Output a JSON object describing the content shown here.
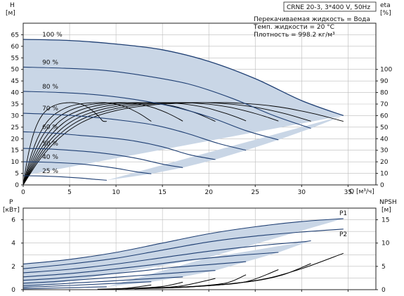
{
  "chart_data": [
    {
      "type": "line",
      "title": "CRNE 20-3, 3*400 V, 50Hz",
      "info_lines": [
        "Перекачиваемая жидкость = Вода",
        "Темп. жидкости = 20 °C",
        "Плотность = 998.2 кг/м³"
      ],
      "xlabel": "Q [м³/ч]",
      "ylabel_line1": "H",
      "ylabel_line2": "[м]",
      "y2label_line1": "eta",
      "y2label_line2": "[%]",
      "xlim": [
        0,
        38
      ],
      "ylim": [
        0,
        70
      ],
      "y2lim": [
        0,
        140
      ],
      "x_ticks": [
        0,
        5,
        10,
        15,
        20,
        25,
        30,
        35
      ],
      "y_ticks": [
        0,
        5,
        10,
        15,
        20,
        25,
        30,
        35,
        40,
        45,
        50,
        55,
        60,
        65
      ],
      "y2_ticks": [
        0,
        10,
        20,
        30,
        40,
        50,
        60,
        70,
        80,
        90,
        100
      ],
      "grid": true,
      "head_curves": [
        {
          "name": "100 %",
          "x": [
            0,
            5,
            10,
            15,
            20,
            25,
            30,
            34.5
          ],
          "y": [
            63,
            62.5,
            61,
            58.5,
            53.5,
            46,
            36.5,
            30
          ]
        },
        {
          "name": "90 %",
          "x": [
            0,
            4.5,
            9,
            13.5,
            18,
            22.5,
            27,
            31
          ],
          "y": [
            51,
            50.5,
            49.5,
            47,
            43.5,
            37.5,
            30,
            24.5
          ]
        },
        {
          "name": "80 %",
          "x": [
            0,
            4,
            8,
            12,
            16,
            20,
            24,
            27.5
          ],
          "y": [
            40.5,
            40,
            39,
            37,
            34,
            29.5,
            23.5,
            19.5
          ]
        },
        {
          "name": "70 %",
          "x": [
            0,
            3.5,
            7,
            10.5,
            14,
            17.5,
            21,
            24
          ],
          "y": [
            31,
            30.5,
            29.5,
            28,
            26,
            22.5,
            18,
            15
          ]
        },
        {
          "name": "60 %",
          "x": [
            0,
            3,
            6,
            9,
            12,
            15,
            18,
            20.7
          ],
          "y": [
            23,
            22.5,
            21.5,
            20.5,
            19,
            16.5,
            13,
            11
          ]
        },
        {
          "name": "50 %",
          "x": [
            0,
            2.5,
            5,
            7.5,
            10,
            12.5,
            15,
            17.2
          ],
          "y": [
            15.8,
            15.6,
            15,
            14.2,
            13,
            11.3,
            9,
            7.5
          ]
        },
        {
          "name": "40 %",
          "x": [
            0,
            2,
            4,
            6,
            8,
            10,
            12,
            13.8
          ],
          "y": [
            10,
            9.9,
            9.6,
            9.1,
            8.3,
            7.2,
            5.8,
            4.8
          ]
        },
        {
          "name": "25 %",
          "x": [
            0,
            1.5,
            3,
            4.5,
            6,
            7.5,
            9
          ],
          "y": [
            4,
            3.9,
            3.7,
            3.4,
            3,
            2.5,
            2
          ]
        }
      ],
      "efficiency_curves": [
        {
          "x": [
            0,
            2,
            4,
            6,
            8,
            10,
            12,
            14,
            16,
            18,
            20,
            22,
            24,
            26,
            28,
            30,
            32,
            34.5
          ],
          "y": [
            0,
            25,
            42,
            53,
            60,
            64.5,
            67.5,
            69.3,
            70.4,
            71,
            71.3,
            71.2,
            70.5,
            69.2,
            67,
            64,
            60.5,
            55
          ]
        }
      ]
    },
    {
      "type": "line",
      "ylabel_line1": "P",
      "ylabel_line2": "[кВт]",
      "y2label_line1": "NPSH",
      "y2label_line2": "[м]",
      "xlim": [
        0,
        38
      ],
      "ylim": [
        0,
        7
      ],
      "y2lim": [
        0,
        17.5
      ],
      "y_ticks": [
        0,
        2,
        4,
        6
      ],
      "y2_ticks": [
        0,
        5,
        10,
        15
      ],
      "grid": true,
      "power_curves": [
        {
          "name": "P1",
          "x": [
            0,
            5,
            10,
            15,
            20,
            25,
            30,
            34.5
          ],
          "y": [
            2.2,
            2.6,
            3.2,
            4,
            4.8,
            5.4,
            5.85,
            6.1
          ]
        },
        {
          "name": "P2",
          "x": [
            0,
            5,
            10,
            15,
            20,
            25,
            30,
            34.5
          ],
          "y": [
            1.8,
            2.2,
            2.7,
            3.4,
            4.1,
            4.6,
            4.95,
            5.2
          ]
        },
        {
          "x": [
            0,
            5,
            10,
            15,
            20,
            25,
            30,
            31
          ],
          "y": [
            1.45,
            1.75,
            2.2,
            2.75,
            3.3,
            3.75,
            4.1,
            4.2
          ]
        },
        {
          "x": [
            0,
            4.5,
            9,
            13.5,
            18,
            22.5,
            27.5
          ],
          "y": [
            1.1,
            1.35,
            1.7,
            2.1,
            2.55,
            2.9,
            3.2
          ]
        },
        {
          "x": [
            0,
            4,
            8,
            12,
            16,
            20,
            24
          ],
          "y": [
            0.8,
            1,
            1.25,
            1.55,
            1.9,
            2.15,
            2.4
          ]
        },
        {
          "x": [
            0,
            3.5,
            7,
            10.5,
            14,
            17.5,
            20.7
          ],
          "y": [
            0.55,
            0.7,
            0.9,
            1.1,
            1.3,
            1.5,
            1.65
          ]
        },
        {
          "x": [
            0,
            3,
            6,
            9,
            12,
            15,
            17.2
          ],
          "y": [
            0.35,
            0.45,
            0.6,
            0.72,
            0.87,
            1,
            1.1
          ]
        },
        {
          "x": [
            0,
            2.5,
            5,
            7.5,
            10,
            12.5,
            13.8
          ],
          "y": [
            0.2,
            0.28,
            0.36,
            0.45,
            0.55,
            0.63,
            0.68
          ]
        },
        {
          "x": [
            0,
            2,
            4,
            6,
            8,
            9
          ],
          "y": [
            0.08,
            0.11,
            0.15,
            0.19,
            0.23,
            0.25
          ]
        }
      ],
      "npsh_curves": [
        {
          "x": [
            14,
            18,
            22,
            26,
            30,
            34.5
          ],
          "y": [
            0.3,
            0.6,
            1.2,
            2.3,
            4.5,
            7.8
          ]
        },
        {
          "x": [
            13,
            17,
            21,
            25,
            28,
            31
          ],
          "y": [
            0.25,
            0.5,
            1,
            1.9,
            3.2,
            5.6
          ]
        },
        {
          "x": [
            12,
            16,
            20,
            24,
            27.5
          ],
          "y": [
            0.2,
            0.45,
            0.9,
            1.7,
            4.3
          ]
        },
        {
          "x": [
            11,
            15,
            19,
            22,
            24
          ],
          "y": [
            0.2,
            0.4,
            0.8,
            1.5,
            3.2
          ]
        },
        {
          "x": [
            10,
            13.5,
            17,
            20.7
          ],
          "y": [
            0.15,
            0.35,
            0.8,
            2.4
          ]
        },
        {
          "x": [
            9,
            12,
            15,
            17.2
          ],
          "y": [
            0.12,
            0.3,
            0.7,
            1.6
          ]
        },
        {
          "x": [
            8,
            11,
            13.8
          ],
          "y": [
            0.1,
            0.3,
            1
          ]
        }
      ]
    }
  ]
}
